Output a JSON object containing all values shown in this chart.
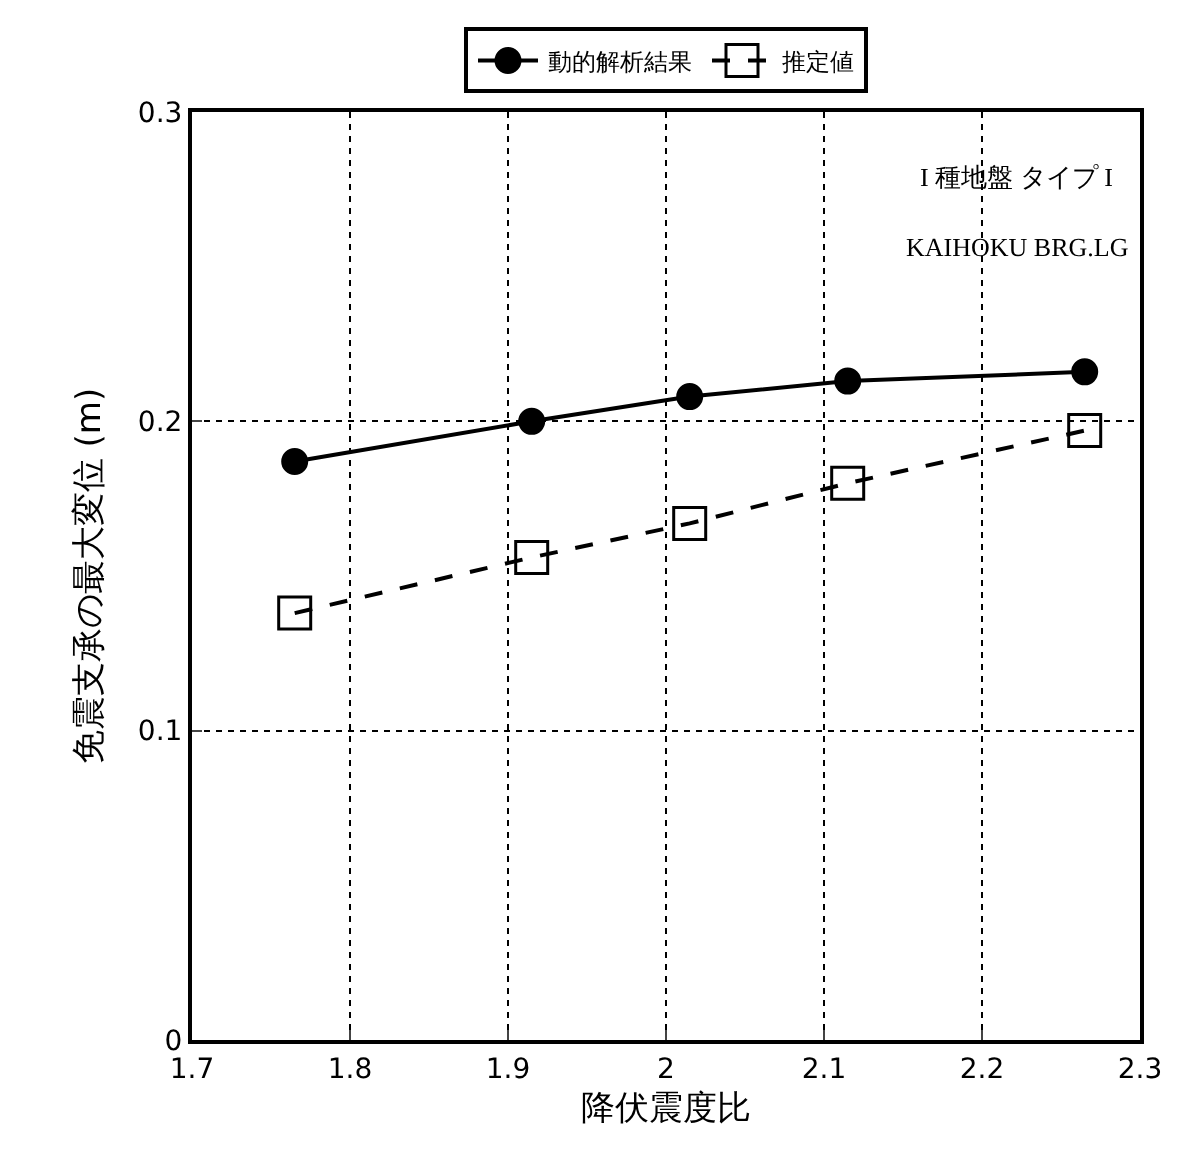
{
  "chart_data": {
    "type": "line",
    "xlabel": "降伏震度比",
    "ylabel": "免震支承の最大変位 (m)",
    "x": [
      1.765,
      1.915,
      2.015,
      2.115,
      2.265
    ],
    "series": [
      {
        "name": "動的解析結果",
        "color": "#000000",
        "values": [
          0.187,
          0.2,
          0.208,
          0.213,
          0.216
        ],
        "marker": "circle",
        "line_style": "solid"
      },
      {
        "name": "推定値",
        "color": "#000000",
        "values": [
          0.138,
          0.156,
          0.167,
          0.18,
          0.197
        ],
        "marker": "square",
        "line_style": "dashed"
      }
    ],
    "xlim": [
      1.7,
      2.3
    ],
    "xticks": [
      1.7,
      1.8,
      1.9,
      2,
      2.1,
      2.2,
      2.3
    ],
    "ylim": [
      0,
      0.3
    ],
    "yticks": [
      0,
      0.1,
      0.2,
      0.3
    ],
    "grid": true,
    "legend": "top",
    "annotations": [
      "I 種地盤 タイプ I",
      "KAIHOKU BRG.LG"
    ]
  }
}
